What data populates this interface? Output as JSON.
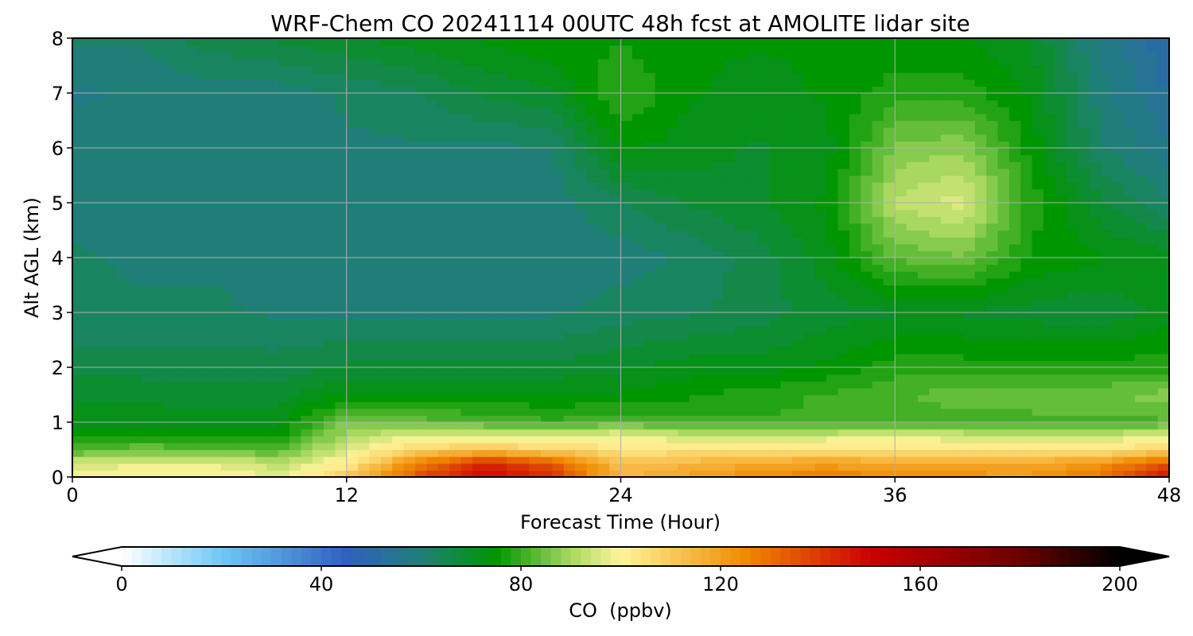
{
  "chart_data": {
    "type": "heatmap",
    "title": "WRF-Chem CO  20241114 00UTC 48h fcst at AMOLITE lidar site",
    "xlabel": "Forecast Time (Hour)",
    "ylabel": "Alt AGL (km)",
    "xlim": [
      0,
      48
    ],
    "ylim": [
      0,
      8
    ],
    "xticks": [
      0,
      12,
      24,
      36,
      48
    ],
    "yticks": [
      0,
      1,
      2,
      3,
      4,
      5,
      6,
      7,
      8
    ],
    "grid": true,
    "colorbar": {
      "label": "CO  (ppbv)",
      "range": [
        0,
        200
      ],
      "ticks": [
        0,
        40,
        80,
        120,
        160,
        200
      ],
      "extend": "both",
      "colormap_stops": [
        {
          "value": 0,
          "color": "#ffffff"
        },
        {
          "value": 20,
          "color": "#6ec8f5"
        },
        {
          "value": 45,
          "color": "#3060c0"
        },
        {
          "value": 60,
          "color": "#1f7f78"
        },
        {
          "value": 75,
          "color": "#009600"
        },
        {
          "value": 90,
          "color": "#a8d860"
        },
        {
          "value": 100,
          "color": "#fff59a"
        },
        {
          "value": 125,
          "color": "#f08a00"
        },
        {
          "value": 150,
          "color": "#cc0000"
        },
        {
          "value": 180,
          "color": "#6a0000"
        },
        {
          "value": 200,
          "color": "#000000"
        }
      ]
    },
    "x": [
      0,
      3,
      6,
      9,
      12,
      15,
      18,
      21,
      24,
      27,
      30,
      33,
      36,
      39,
      42,
      45,
      48
    ],
    "y": [
      0,
      0.25,
      0.5,
      0.75,
      1,
      1.5,
      2,
      3,
      4,
      5,
      6,
      7,
      8
    ],
    "z": [
      [
        102,
        100,
        100,
        98,
        110,
        135,
        150,
        140,
        115,
        120,
        125,
        128,
        125,
        123,
        122,
        130,
        148
      ],
      [
        95,
        97,
        98,
        92,
        102,
        125,
        145,
        135,
        112,
        115,
        118,
        120,
        118,
        118,
        118,
        122,
        135
      ],
      [
        82,
        85,
        84,
        82,
        96,
        108,
        112,
        108,
        104,
        104,
        104,
        105,
        104,
        104,
        104,
        104,
        108
      ],
      [
        75,
        76,
        76,
        76,
        90,
        97,
        96,
        97,
        99,
        94,
        95,
        95,
        96,
        95,
        94,
        94,
        97
      ],
      [
        72,
        72,
        72,
        72,
        86,
        84,
        82,
        80,
        82,
        80,
        80,
        80,
        81,
        81,
        81,
        81,
        82
      ],
      [
        70,
        70,
        69,
        69,
        74,
        74,
        74,
        74,
        74,
        76,
        78,
        80,
        82,
        84,
        85,
        85,
        87
      ],
      [
        66,
        66,
        66,
        66,
        68,
        68,
        68,
        68,
        70,
        72,
        72,
        74,
        78,
        78,
        78,
        78,
        78
      ],
      [
        62,
        62,
        62,
        61,
        61,
        61,
        61,
        61,
        63,
        64,
        66,
        69,
        70,
        70,
        69,
        68,
        72
      ],
      [
        62,
        61,
        61,
        61,
        60,
        60,
        60,
        60,
        60,
        62,
        66,
        72,
        83,
        85,
        76,
        74,
        72
      ],
      [
        60,
        60,
        60,
        60,
        60,
        60,
        60,
        60,
        64,
        68,
        70,
        74,
        92,
        96,
        78,
        68,
        62
      ],
      [
        60,
        59,
        60,
        60,
        61,
        61,
        61,
        61,
        74,
        72,
        70,
        72,
        86,
        88,
        75,
        62,
        56
      ],
      [
        58,
        59,
        60,
        60,
        62,
        64,
        68,
        70,
        80,
        74,
        72,
        74,
        78,
        78,
        73,
        60,
        52
      ],
      [
        62,
        62,
        66,
        68,
        70,
        72,
        74,
        76,
        76,
        74,
        74,
        74,
        74,
        74,
        70,
        58,
        50
      ]
    ]
  }
}
